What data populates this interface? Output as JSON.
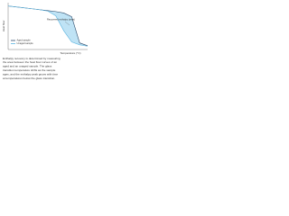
{
  "chart_data": {
    "type": "line",
    "x_label": "Temperature (°C)",
    "y_label": "Heat flow",
    "annotation": "Recovered enthalpy (area)",
    "x": [
      0,
      10,
      20,
      30,
      40,
      50,
      60,
      70,
      80,
      90,
      100
    ],
    "series": [
      {
        "name": "Aged sample",
        "color": "#2b4a6b",
        "values": [
          93,
          91,
          89,
          87,
          85,
          83,
          81,
          78,
          70,
          14,
          8
        ]
      },
      {
        "name": "Unaged sample",
        "color": "#5ab4e0",
        "values": [
          93,
          91,
          89,
          87,
          85,
          82,
          72,
          40,
          16,
          10,
          7
        ]
      }
    ],
    "xlim": [
      0,
      100
    ],
    "ylim": [
      0,
      100
    ],
    "legend": "lower left",
    "shade_color": "#bfe3f5",
    "caption": [
      "Enthalpy recovery is determined by measuring",
      "the area between the heat flow curves of an",
      "aged and an unaged sample. The glass",
      "transition temperature shifts as the sample",
      "ages, and the enthalpy peak grows with time",
      "at temperatures below the glass transition."
    ]
  }
}
